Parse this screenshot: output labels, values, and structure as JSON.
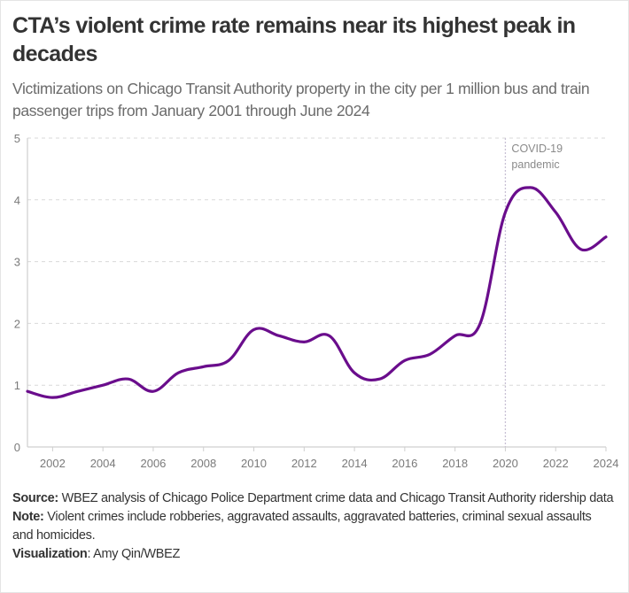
{
  "title": "CTA’s violent crime rate remains near its highest peak in decades",
  "subtitle": "Victimizations on Chicago Transit Authority property in the city per 1 million bus and train passenger trips from January 2001 through June 2024",
  "footer": {
    "source_label": "Source:",
    "source_text": " WBEZ analysis of Chicago Police Department crime data and Chicago Transit Authority ridership data",
    "note_label": "Note:",
    "note_text": " Violent crimes include robberies, aggravated assaults, aggravated batteries, criminal sexual assaults and homicides.",
    "viz_label": "Visualization",
    "viz_text": ": Amy Qin/WBEZ"
  },
  "colors": {
    "line": "#6a0d8c",
    "grid": "#d9d9d9",
    "axis": "#cfcfcf",
    "annotation_line": "#c8c0d4"
  },
  "chart_data": {
    "type": "line",
    "title": "CTA’s violent crime rate remains near its highest peak in decades",
    "xlabel": "",
    "ylabel": "",
    "xlim": [
      2001,
      2024
    ],
    "ylim": [
      0,
      5
    ],
    "grid": true,
    "x_ticks": [
      2002,
      2004,
      2006,
      2008,
      2010,
      2012,
      2014,
      2016,
      2018,
      2020,
      2022,
      2024
    ],
    "y_ticks": [
      0,
      1,
      2,
      3,
      4,
      5
    ],
    "series": [
      {
        "name": "Victimizations per 1 million trips",
        "x": [
          2001,
          2002,
          2003,
          2004,
          2005,
          2006,
          2007,
          2008,
          2009,
          2010,
          2011,
          2012,
          2013,
          2014,
          2015,
          2016,
          2017,
          2018,
          2019,
          2020,
          2021,
          2022,
          2023,
          2024
        ],
        "values": [
          0.9,
          0.8,
          0.9,
          1.0,
          1.1,
          0.9,
          1.2,
          1.3,
          1.4,
          1.9,
          1.8,
          1.7,
          1.8,
          1.2,
          1.1,
          1.4,
          1.5,
          1.8,
          2.0,
          3.8,
          4.2,
          3.8,
          3.2,
          3.4
        ]
      }
    ],
    "annotations": [
      {
        "x": 2020,
        "label_line1": "COVID-19",
        "label_line2": "pandemic"
      }
    ]
  }
}
